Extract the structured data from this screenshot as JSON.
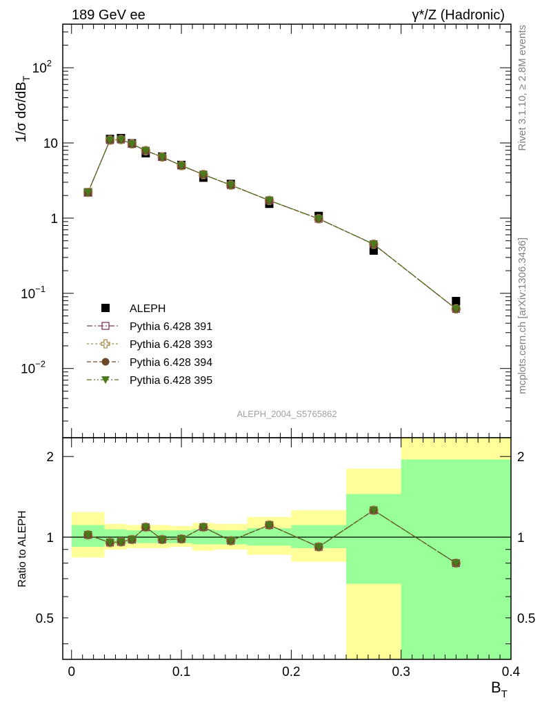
{
  "header": {
    "left": "189 GeV ee",
    "right_main": "γ*/Z (Hadronic)"
  },
  "side": {
    "rivet": "Rivet 3.1.10, ≥ 2.8M events",
    "mcplots": "mcplots.cern.ch [arXiv:1306.3436]"
  },
  "chart_data": [
    {
      "type": "scatter",
      "analysis_label": "ALEPH_2004_S5765862",
      "ylabel_main": "1/σ  dσ/dB",
      "ylabel_sub": "T",
      "xlabel_main": "B",
      "xlabel_sub": "T",
      "yscale": "log",
      "ylim": [
        0.0012,
        380
      ],
      "xlim": [
        -0.008,
        0.4
      ],
      "y_ticks": [
        {
          "v": 0.01,
          "base": "10",
          "exp": "−2"
        },
        {
          "v": 0.1,
          "base": "10",
          "exp": "−1"
        },
        {
          "v": 1,
          "base": "1",
          "exp": ""
        },
        {
          "v": 10,
          "base": "10",
          "exp": ""
        },
        {
          "v": 100,
          "base": "10",
          "exp": "2"
        }
      ],
      "legend_position": "lower-left",
      "x": [
        0.015,
        0.035,
        0.045,
        0.055,
        0.0675,
        0.0825,
        0.1,
        0.12,
        0.145,
        0.18,
        0.225,
        0.275,
        0.35
      ],
      "series": [
        {
          "name": "ALEPH",
          "color": "#000000",
          "marker": "square-filled",
          "values": [
            2.2,
            11.3,
            11.6,
            9.9,
            7.3,
            6.6,
            5.1,
            3.45,
            2.85,
            1.55,
            1.07,
            0.37,
            0.079
          ]
        },
        {
          "name": "Pythia 6.428 391",
          "color": "#7a3b5a",
          "marker": "square-open",
          "values": [
            2.2,
            10.9,
            11.1,
            9.7,
            7.9,
            6.5,
            5.0,
            3.8,
            2.75,
            1.72,
            0.98,
            0.45,
            0.062
          ]
        },
        {
          "name": "Pythia 6.428 393",
          "color": "#a68a4a",
          "marker": "cross-open",
          "values": [
            2.2,
            10.9,
            11.1,
            9.7,
            7.9,
            6.5,
            5.0,
            3.8,
            2.75,
            1.72,
            0.98,
            0.45,
            0.062
          ]
        },
        {
          "name": "Pythia 6.428 394",
          "color": "#6b4a2a",
          "marker": "circle-filled",
          "values": [
            2.2,
            10.9,
            11.1,
            9.7,
            7.9,
            6.5,
            5.0,
            3.8,
            2.75,
            1.72,
            0.98,
            0.45,
            0.062
          ]
        },
        {
          "name": "Pythia 6.428 395",
          "color": "#4a7a1c",
          "marker": "triangle-down-filled",
          "values": [
            2.2,
            10.9,
            11.1,
            9.7,
            7.9,
            6.5,
            5.0,
            3.8,
            2.75,
            1.72,
            0.98,
            0.45,
            0.062
          ]
        }
      ]
    },
    {
      "type": "line",
      "ylabel": "Ratio to ALEPH",
      "yscale": "log",
      "ylim": [
        0.35,
        2.35
      ],
      "y_ticks": [
        0.5,
        1,
        2
      ],
      "x_ticks": [
        0,
        0.1,
        0.2,
        0.3,
        0.4
      ],
      "x_tick_labels": [
        "0",
        "0.1",
        "0.2",
        "0.3",
        "0.4"
      ],
      "bins": [
        [
          0.0,
          0.03
        ],
        [
          0.03,
          0.04
        ],
        [
          0.04,
          0.05
        ],
        [
          0.05,
          0.06
        ],
        [
          0.06,
          0.075
        ],
        [
          0.075,
          0.09
        ],
        [
          0.09,
          0.11
        ],
        [
          0.11,
          0.13
        ],
        [
          0.13,
          0.16
        ],
        [
          0.16,
          0.2
        ],
        [
          0.2,
          0.25
        ],
        [
          0.25,
          0.3
        ],
        [
          0.3,
          0.4
        ]
      ],
      "band_yellow": [
        [
          0.84,
          1.24
        ],
        [
          0.9,
          1.12
        ],
        [
          0.9,
          1.12
        ],
        [
          0.91,
          1.11
        ],
        [
          0.91,
          1.11
        ],
        [
          0.91,
          1.11
        ],
        [
          0.92,
          1.1
        ],
        [
          0.89,
          1.13
        ],
        [
          0.9,
          1.12
        ],
        [
          0.86,
          1.19
        ],
        [
          0.81,
          1.26
        ],
        [
          0.35,
          1.8
        ],
        [
          0.35,
          2.35
        ]
      ],
      "band_green": [
        [
          0.92,
          1.11
        ],
        [
          0.94,
          1.07
        ],
        [
          0.94,
          1.07
        ],
        [
          0.95,
          1.06
        ],
        [
          0.95,
          1.06
        ],
        [
          0.95,
          1.06
        ],
        [
          0.95,
          1.06
        ],
        [
          0.94,
          1.07
        ],
        [
          0.94,
          1.06
        ],
        [
          0.93,
          1.08
        ],
        [
          0.91,
          1.11
        ],
        [
          0.67,
          1.45
        ],
        [
          0.35,
          1.95
        ]
      ],
      "x": [
        0.015,
        0.035,
        0.045,
        0.055,
        0.0675,
        0.0825,
        0.1,
        0.12,
        0.145,
        0.18,
        0.225,
        0.275,
        0.35
      ],
      "values": [
        1.02,
        0.955,
        0.96,
        0.98,
        1.09,
        0.98,
        0.985,
        1.09,
        0.97,
        1.11,
        0.92,
        1.26,
        0.8
      ]
    }
  ]
}
